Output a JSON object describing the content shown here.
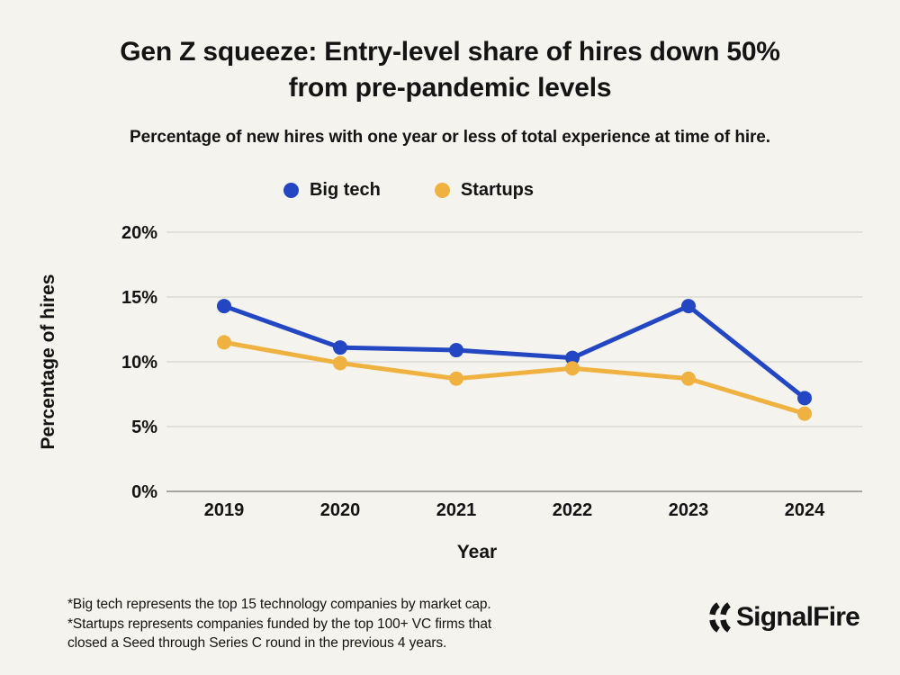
{
  "header": {
    "title_line1": "Gen Z squeeze: Entry-level share of hires down 50%",
    "title_line2": "from pre-pandemic levels",
    "subtitle": "Percentage of new hires with one year or less of total experience at time of hire."
  },
  "legend": {
    "items": [
      {
        "label": "Big tech",
        "color": "#2346c3"
      },
      {
        "label": "Startups",
        "color": "#efb240"
      }
    ]
  },
  "chart_data": {
    "type": "line",
    "title": "Gen Z squeeze: Entry-level share of hires down 50% from pre-pandemic levels",
    "subtitle": "Percentage of new hires with one year or less of total experience at time of hire.",
    "x": [
      "2019",
      "2020",
      "2021",
      "2022",
      "2023",
      "2024"
    ],
    "series": [
      {
        "name": "Big tech",
        "color": "#2346c3",
        "values": [
          14.3,
          11.1,
          10.9,
          10.3,
          14.3,
          7.2
        ]
      },
      {
        "name": "Startups",
        "color": "#efb240",
        "values": [
          11.5,
          9.9,
          8.7,
          9.5,
          8.7,
          6.0
        ]
      }
    ],
    "xlabel": "Year",
    "ylabel": "Percentage of hires",
    "ylim": [
      0,
      20
    ],
    "yticks": [
      0,
      5,
      10,
      15,
      20
    ],
    "ytick_labels": [
      "0%",
      "5%",
      "10%",
      "15%",
      "20%"
    ],
    "grid": true,
    "legend_position": "top-center"
  },
  "footer": {
    "notes": [
      "*Big tech represents the top 15 technology companies by market cap.",
      "*Startups represents companies funded by the top 100+ VC firms that",
      "closed a Seed through Series C round in the previous 4 years."
    ],
    "brand": "SignalFire"
  },
  "colors": {
    "background": "#f5f3ed",
    "text": "#141414",
    "gridline": "#dcdad3",
    "axis_line": "#a6a49d",
    "big_tech": "#2346c3",
    "startups": "#efb240"
  }
}
